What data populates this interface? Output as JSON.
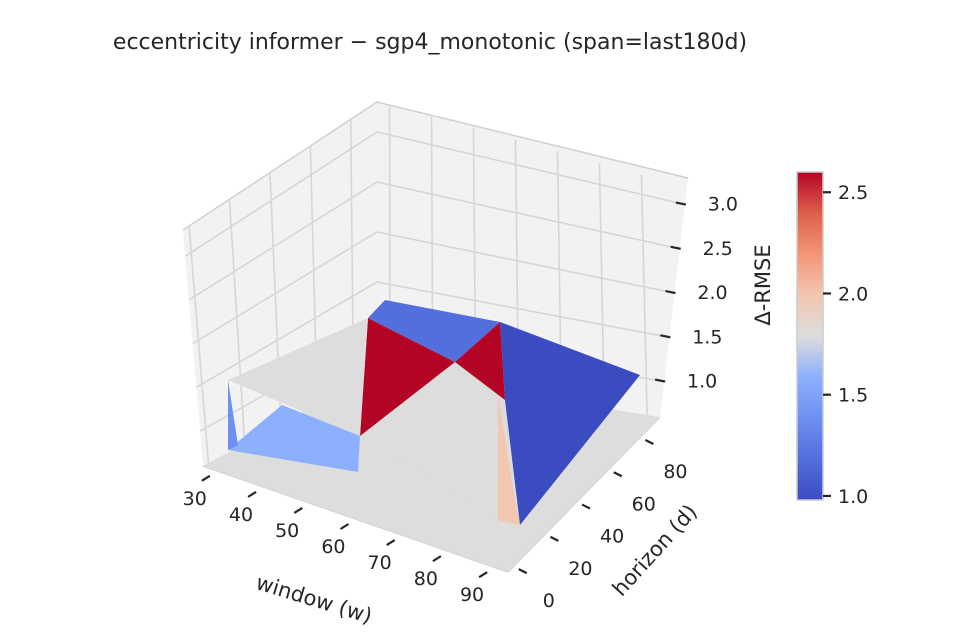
{
  "chart_data": {
    "type": "surface3d",
    "title": "eccentricity  informer − sgp4_monotonic  (span=last180d)",
    "xlabel": "window (w)",
    "ylabel": "horizon (d)",
    "zlabel": "Δ-RMSE",
    "x_ticks": [
      "30",
      "40",
      "50",
      "60",
      "70",
      "80",
      "90"
    ],
    "y_ticks": [
      "0",
      "20",
      "40",
      "60",
      "80"
    ],
    "z_ticks": [
      "1.0",
      "1.5",
      "2.0",
      "2.5",
      "3.0"
    ],
    "xlim": [
      27,
      93
    ],
    "ylim": [
      -3,
      93
    ],
    "zlim": [
      0.6,
      3.3
    ],
    "x": [
      30,
      60,
      90
    ],
    "y": [
      1,
      30,
      90
    ],
    "z": [
      [
        1.4,
        1.2,
        1.5
      ],
      [
        1.7,
        2.6,
        0.98
      ],
      [
        2.2,
        2.6,
        1.0
      ]
    ],
    "face_values": [
      [
        1.4,
        1.75
      ],
      [
        1.75,
        1.8
      ]
    ],
    "colormap": "coolwarm",
    "colorbar": {
      "ticks": [
        "1.0",
        "1.5",
        "2.0",
        "2.5"
      ],
      "min": 0.98,
      "max": 2.6
    },
    "colors": {
      "cool": "#3b4cc0",
      "neutral": "#dddddd",
      "warm": "#b40426"
    }
  }
}
